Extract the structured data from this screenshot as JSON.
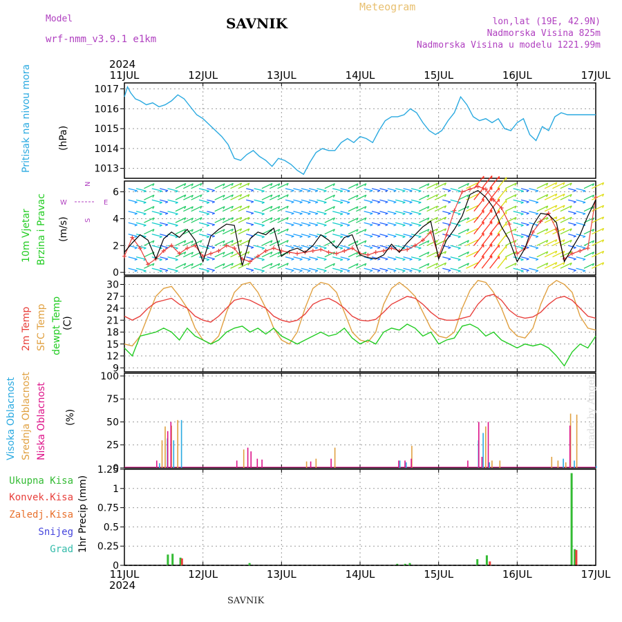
{
  "header": {
    "model_label": "Model",
    "model_name": "wrf-nmm_v3.9.1 e1km",
    "station": "SAVNIK",
    "title": "Meteogram",
    "lonlat": "lon,lat (19E, 42.9N)",
    "altitude": "Nadmorska Visina 825m",
    "model_altitude": "Nadmorska Visina u modelu 1221.99m",
    "year": "2024",
    "footer": "SAVNIK",
    "signature": "made by Angel"
  },
  "colors": {
    "pressure": "#29a9e0",
    "temp2m": "#e8403c",
    "sfc_temp": "#e0a040",
    "dewpoint": "#22cc22",
    "wind_speed": "#000000",
    "wind_dir": "#e8403c",
    "high_cloud": "#29a9e0",
    "mid_cloud": "#e0a040",
    "low_cloud": "#dd1188",
    "total_precip": "#33bb33",
    "convective": "#e8403c",
    "freezing": "#e8702c",
    "snow": "#4444dd",
    "graupel": "#33bbaa",
    "compass": "#b040c0"
  },
  "chart_data": [
    {
      "type": "line",
      "panel": "pressure",
      "ylabel_main": "Pritisak na nivou mora",
      "unit": "(hPa)",
      "x_ticks": [
        "11JUL",
        "12JUL",
        "13JUL",
        "14JUL",
        "15JUL",
        "16JUL",
        "17JUL"
      ],
      "ylim": [
        1012.5,
        1017.3
      ],
      "y_ticks": [
        1013,
        1014,
        1015,
        1016,
        1017
      ],
      "grid": true,
      "series": [
        {
          "name": "Pritisak na nivou mora",
          "x": [
            0,
            0.04,
            0.08,
            0.14,
            0.2,
            0.28,
            0.36,
            0.44,
            0.52,
            0.6,
            0.68,
            0.76,
            0.84,
            0.92,
            1.0,
            1.08,
            1.16,
            1.24,
            1.32,
            1.4,
            1.48,
            1.56,
            1.64,
            1.72,
            1.8,
            1.88,
            1.96,
            2.04,
            2.12,
            2.2,
            2.28,
            2.36,
            2.44,
            2.52,
            2.6,
            2.68,
            2.76,
            2.84,
            2.92,
            3.0,
            3.08,
            3.16,
            3.24,
            3.32,
            3.4,
            3.48,
            3.56,
            3.64,
            3.72,
            3.8,
            3.88,
            3.96,
            4.04,
            4.12,
            4.2,
            4.28,
            4.36,
            4.44,
            4.52,
            4.6,
            4.68,
            4.76,
            4.84,
            4.92,
            5.0,
            5.08,
            5.16,
            5.24,
            5.32,
            5.4,
            5.48,
            5.56,
            5.64,
            5.72,
            5.8,
            5.88,
            5.96,
            6.0
          ],
          "values": [
            1016.6,
            1017.1,
            1016.8,
            1016.5,
            1016.4,
            1016.2,
            1016.3,
            1016.1,
            1016.2,
            1016.4,
            1016.7,
            1016.5,
            1016.1,
            1015.7,
            1015.5,
            1015.2,
            1014.9,
            1014.6,
            1014.2,
            1013.5,
            1013.4,
            1013.7,
            1013.9,
            1013.6,
            1013.4,
            1013.1,
            1013.5,
            1013.4,
            1013.2,
            1012.9,
            1012.7,
            1013.3,
            1013.8,
            1014.0,
            1013.9,
            1013.9,
            1014.3,
            1014.5,
            1014.3,
            1014.6,
            1014.5,
            1014.3,
            1014.9,
            1015.4,
            1015.6,
            1015.6,
            1015.7,
            1016.0,
            1015.8,
            1015.3,
            1014.9,
            1014.7,
            1014.9,
            1015.4,
            1015.8,
            1016.6,
            1016.2,
            1015.6,
            1015.4,
            1015.5,
            1015.3,
            1015.5,
            1015.0,
            1014.9,
            1015.3,
            1015.5,
            1014.7,
            1014.4,
            1015.1,
            1014.9,
            1015.6,
            1015.8,
            1015.7,
            1015.7,
            1015.7,
            1015.7,
            1015.7,
            1015.7
          ]
        }
      ]
    },
    {
      "type": "line",
      "panel": "wind",
      "ylabel_main": "10m Vjetar",
      "ylabel_sub": "Brzina i Pravac",
      "unit": "(m/s)",
      "compass": {
        "n": "N",
        "s": "S",
        "e": "E",
        "w": "W"
      },
      "ylim": [
        -0.2,
        6.8
      ],
      "y_ticks": [
        0,
        2,
        4,
        6
      ],
      "grid": true,
      "series": [
        {
          "name": "Brzina",
          "x": [
            0,
            0.1,
            0.2,
            0.3,
            0.4,
            0.5,
            0.6,
            0.7,
            0.8,
            0.9,
            1.0,
            1.1,
            1.2,
            1.3,
            1.4,
            1.5,
            1.6,
            1.7,
            1.8,
            1.9,
            2.0,
            2.1,
            2.2,
            2.3,
            2.4,
            2.5,
            2.6,
            2.7,
            2.8,
            2.9,
            3.0,
            3.1,
            3.2,
            3.3,
            3.4,
            3.5,
            3.6,
            3.7,
            3.8,
            3.9,
            4.0,
            4.1,
            4.2,
            4.3,
            4.4,
            4.5,
            4.6,
            4.7,
            4.8,
            4.9,
            5.0,
            5.1,
            5.2,
            5.3,
            5.4,
            5.5,
            5.6,
            5.7,
            5.8,
            5.9,
            6.0
          ],
          "values": [
            1.5,
            2.2,
            2.8,
            2.4,
            1.0,
            2.5,
            3.0,
            2.6,
            3.2,
            2.4,
            0.8,
            2.7,
            3.2,
            3.6,
            3.5,
            0.5,
            2.5,
            3.0,
            2.8,
            3.3,
            1.2,
            1.6,
            1.8,
            1.5,
            2.0,
            2.8,
            2.4,
            1.8,
            2.6,
            2.8,
            1.3,
            1.1,
            1.0,
            1.3,
            2.1,
            1.5,
            2.2,
            2.8,
            3.4,
            3.8,
            1.0,
            2.4,
            3.2,
            4.2,
            5.8,
            6.1,
            5.6,
            4.8,
            3.4,
            2.4,
            0.8,
            1.8,
            3.5,
            4.4,
            4.3,
            3.7,
            0.8,
            1.8,
            2.8,
            4.2,
            5.4
          ]
        },
        {
          "name": "Pravac",
          "x": [
            0,
            0.1,
            0.2,
            0.3,
            0.4,
            0.5,
            0.6,
            0.7,
            0.8,
            0.9,
            1.0,
            1.1,
            1.2,
            1.3,
            1.4,
            1.5,
            1.6,
            1.7,
            1.8,
            1.9,
            2.0,
            2.1,
            2.2,
            2.3,
            2.4,
            2.5,
            2.6,
            2.7,
            2.8,
            2.9,
            3.0,
            3.1,
            3.2,
            3.3,
            3.4,
            3.5,
            3.6,
            3.7,
            3.8,
            3.9,
            4.0,
            4.1,
            4.2,
            4.3,
            4.4,
            4.5,
            4.6,
            4.7,
            4.8,
            4.9,
            5.0,
            5.1,
            5.2,
            5.3,
            5.4,
            5.5,
            5.6,
            5.7,
            5.8,
            5.9,
            6.0
          ],
          "values": [
            1.2,
            2.6,
            1.8,
            0.6,
            1.0,
            1.6,
            2.0,
            1.4,
            1.8,
            2.0,
            1.2,
            1.4,
            1.6,
            2.0,
            1.8,
            1.0,
            0.8,
            1.2,
            1.6,
            1.8,
            1.6,
            1.5,
            1.4,
            1.5,
            1.6,
            1.7,
            1.5,
            1.4,
            1.6,
            1.8,
            1.4,
            1.3,
            1.5,
            1.6,
            1.8,
            1.6,
            1.7,
            2.0,
            2.4,
            3.0,
            1.2,
            2.8,
            4.6,
            6.0,
            6.2,
            6.4,
            6.2,
            5.4,
            4.8,
            3.6,
            1.4,
            1.8,
            3.0,
            3.8,
            4.4,
            3.2,
            1.0,
            1.4,
            1.6,
            1.8,
            5.6
          ]
        }
      ]
    },
    {
      "type": "line",
      "panel": "temperature",
      "ylabel_main": "2m Temp",
      "ylabel_sub": "SFC Temp",
      "ylabel_sub2": "dewpt Temp",
      "unit": "(C)",
      "ylim": [
        8,
        32
      ],
      "y_ticks": [
        9,
        12,
        15,
        18,
        21,
        24,
        27,
        30
      ],
      "grid": true,
      "series": [
        {
          "name": "2m Temp",
          "x": [
            0,
            0.1,
            0.2,
            0.3,
            0.4,
            0.5,
            0.6,
            0.7,
            0.8,
            0.9,
            1.0,
            1.1,
            1.2,
            1.3,
            1.4,
            1.5,
            1.6,
            1.7,
            1.8,
            1.9,
            2.0,
            2.1,
            2.2,
            2.3,
            2.4,
            2.5,
            2.6,
            2.7,
            2.8,
            2.9,
            3.0,
            3.1,
            3.2,
            3.3,
            3.4,
            3.5,
            3.6,
            3.7,
            3.8,
            3.9,
            4.0,
            4.1,
            4.2,
            4.3,
            4.4,
            4.5,
            4.6,
            4.7,
            4.8,
            4.9,
            5.0,
            5.1,
            5.2,
            5.3,
            5.4,
            5.5,
            5.6,
            5.7,
            5.8,
            5.9,
            6.0
          ],
          "values": [
            22,
            21,
            22,
            24,
            25.5,
            26,
            26.5,
            25,
            24,
            22,
            21,
            20.5,
            22,
            24,
            26,
            26.5,
            26,
            25,
            24,
            22,
            21,
            20.5,
            21,
            22.5,
            25,
            26,
            26.5,
            25.5,
            24,
            22,
            21,
            20.8,
            21.2,
            23,
            25,
            26,
            27,
            26.5,
            25,
            23,
            21.5,
            21,
            21,
            21.5,
            22,
            25,
            27,
            27.5,
            26,
            23.5,
            22,
            21.5,
            21.8,
            23,
            25,
            26.5,
            27,
            26,
            24,
            22,
            21.5
          ]
        },
        {
          "name": "SFC Temp",
          "x": [
            0,
            0.1,
            0.2,
            0.3,
            0.4,
            0.5,
            0.6,
            0.7,
            0.8,
            0.9,
            1.0,
            1.1,
            1.2,
            1.3,
            1.4,
            1.5,
            1.6,
            1.7,
            1.8,
            1.9,
            2.0,
            2.1,
            2.2,
            2.3,
            2.4,
            2.5,
            2.6,
            2.7,
            2.8,
            2.9,
            3.0,
            3.1,
            3.2,
            3.3,
            3.4,
            3.5,
            3.6,
            3.7,
            3.8,
            3.9,
            4.0,
            4.1,
            4.2,
            4.3,
            4.4,
            4.5,
            4.6,
            4.7,
            4.8,
            4.9,
            5.0,
            5.1,
            5.2,
            5.3,
            5.4,
            5.5,
            5.6,
            5.7,
            5.8,
            5.9,
            6.0
          ],
          "values": [
            15,
            14.5,
            17,
            22,
            27,
            29,
            29.5,
            27,
            24,
            19,
            16,
            15,
            17,
            23,
            28,
            30,
            30.5,
            28,
            24,
            19,
            16,
            15,
            18,
            24,
            29,
            30.5,
            30,
            28,
            23,
            18,
            16,
            15.5,
            18,
            25,
            29,
            30.5,
            29,
            27,
            23,
            19,
            17,
            16.5,
            18,
            24,
            28.5,
            31,
            30.5,
            28,
            24,
            19,
            17,
            16.5,
            19,
            25,
            29.5,
            31,
            30,
            28,
            22,
            19,
            18.5
          ]
        },
        {
          "name": "dewpt Temp",
          "x": [
            0,
            0.1,
            0.2,
            0.3,
            0.4,
            0.5,
            0.6,
            0.7,
            0.8,
            0.9,
            1.0,
            1.1,
            1.2,
            1.3,
            1.4,
            1.5,
            1.6,
            1.7,
            1.8,
            1.9,
            2.0,
            2.1,
            2.2,
            2.3,
            2.4,
            2.5,
            2.6,
            2.7,
            2.8,
            2.9,
            3.0,
            3.1,
            3.2,
            3.3,
            3.4,
            3.5,
            3.6,
            3.7,
            3.8,
            3.9,
            4.0,
            4.1,
            4.2,
            4.3,
            4.4,
            4.5,
            4.6,
            4.7,
            4.8,
            4.9,
            5.0,
            5.1,
            5.2,
            5.3,
            5.4,
            5.5,
            5.6,
            5.7,
            5.8,
            5.9,
            6.0
          ],
          "values": [
            14,
            12,
            17,
            17.5,
            18,
            19,
            18,
            16,
            19,
            17,
            16,
            15,
            16,
            18,
            19,
            19.5,
            18,
            19,
            17.5,
            19,
            17,
            16,
            15,
            16,
            17,
            18,
            17,
            17.5,
            19,
            16.5,
            15,
            16,
            15,
            18,
            19,
            18.5,
            20,
            19,
            17,
            18,
            15,
            16,
            16.5,
            19.5,
            20,
            19,
            17,
            18,
            16,
            15,
            14,
            15,
            14.5,
            15,
            14,
            12,
            9.5,
            13,
            15,
            14,
            17
          ]
        }
      ]
    },
    {
      "type": "bar",
      "panel": "clouds",
      "ylabel_main": "Visoka Oblacnost",
      "ylabel_sub": "Srednja Oblacnost",
      "ylabel_sub2": "Niska Oblacnost",
      "unit": "(%)",
      "ylim": [
        0,
        103
      ],
      "y_ticks": [
        0,
        25,
        50,
        75,
        100
      ],
      "grid": true,
      "series": [
        {
          "name": "Visoka Oblacnost",
          "x": [
            0.44,
            0.54,
            0.62,
            0.72,
            3.5,
            3.58,
            4.5,
            4.56,
            4.64,
            5.58,
            5.72,
            6.0
          ],
          "values": [
            5,
            32,
            30,
            52,
            8,
            6,
            30,
            38,
            6,
            10,
            8,
            2
          ]
        },
        {
          "name": "Srednja Oblacnost",
          "x": [
            0.46,
            0.5,
            0.58,
            0.66,
            1.5,
            2.3,
            2.42,
            2.66,
            3.64,
            4.58,
            4.66,
            4.76,
            5.42,
            5.5,
            5.6,
            5.66,
            5.74
          ],
          "values": [
            30,
            45,
            46,
            52,
            20,
            7,
            10,
            22,
            24,
            45,
            8,
            8,
            12,
            8,
            6,
            59,
            58
          ]
        },
        {
          "name": "Niska Oblacnost",
          "x": [
            0.38,
            0.52,
            0.56,
            1.4,
            1.54,
            1.58,
            1.66,
            1.72,
            2.34,
            2.6,
            3.46,
            3.54,
            3.62,
            4.34,
            4.48,
            4.52,
            4.6,
            5.64
          ],
          "values": [
            8,
            40,
            50,
            8,
            22,
            18,
            10,
            9,
            7,
            10,
            8,
            8,
            10,
            8,
            50,
            12,
            50,
            46
          ]
        }
      ]
    },
    {
      "type": "bar",
      "panel": "precip",
      "labels": [
        "Ukupna Kisa",
        "Konvek.Kisa",
        "Zaledj.Kisa",
        "Snijeg",
        "Grad"
      ],
      "ylabel_main": "1hr Precip",
      "unit": "(mm)",
      "ylim": [
        0,
        1.25
      ],
      "y_ticks": [
        0,
        0.25,
        0.5,
        0.75,
        1,
        1.25
      ],
      "y_tick_labels": [
        "0",
        "0.25",
        "0.5",
        "0.75",
        "1",
        "1.25"
      ],
      "grid": true,
      "x_ticks": [
        "11JUL",
        "12JUL",
        "13JUL",
        "14JUL",
        "15JUL",
        "16JUL",
        "17JUL"
      ],
      "series": [
        {
          "name": "Ukupna Kisa",
          "x": [
            0.54,
            0.6,
            0.7,
            1.58,
            3.46,
            3.56,
            3.62,
            4.48,
            4.6,
            5.68,
            5.72
          ],
          "values": [
            0.14,
            0.15,
            0.1,
            0.03,
            0.02,
            0.02,
            0.03,
            0.08,
            0.13,
            1.2,
            0.21
          ]
        },
        {
          "name": "Konvek.Kisa",
          "x": [
            0.7,
            4.62,
            5.72
          ],
          "values": [
            0.09,
            0.05,
            0.2
          ]
        }
      ]
    }
  ]
}
